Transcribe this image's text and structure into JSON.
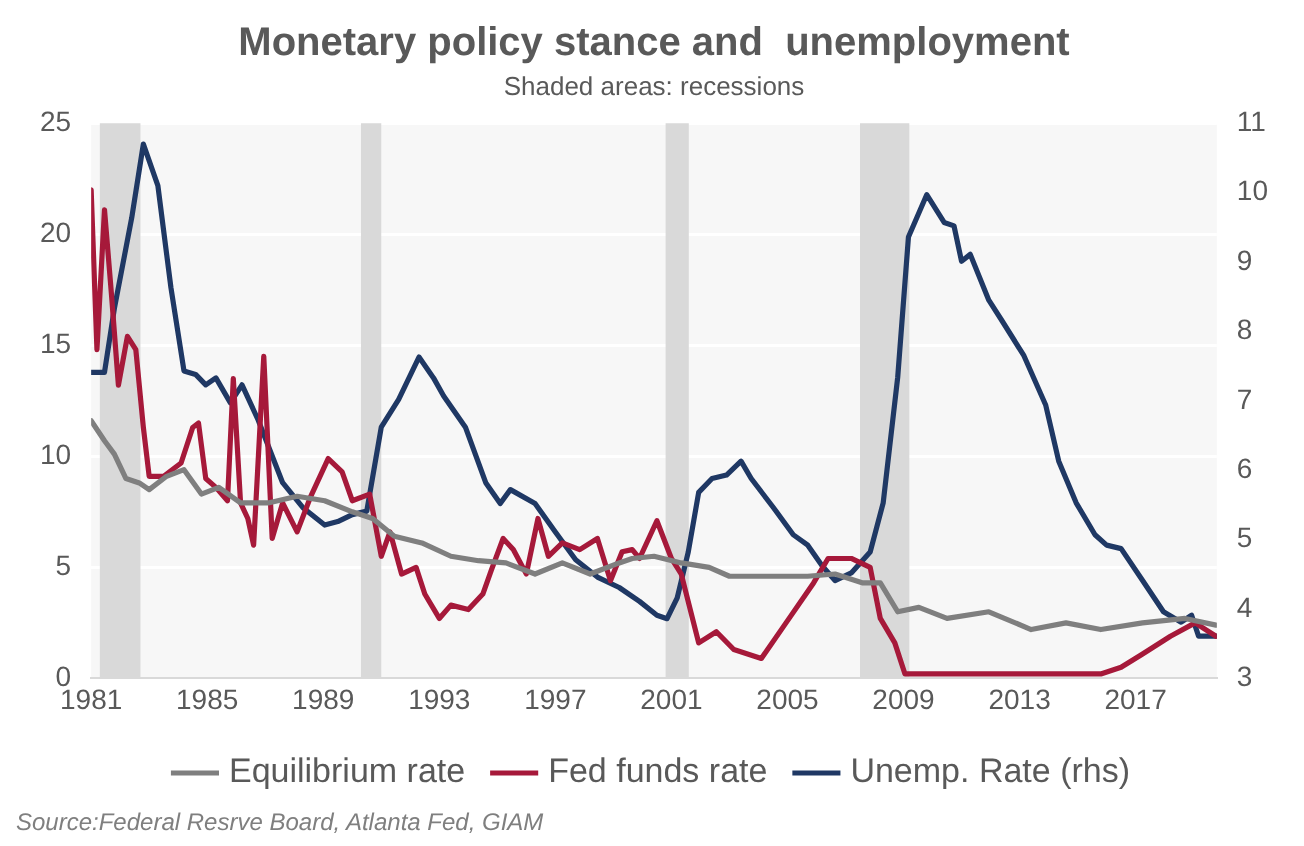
{
  "chart_data": {
    "type": "line",
    "title": "Monetary policy stance and  unemployment",
    "subtitle": "Shaded areas: recessions",
    "annotations": [
      "Source:Federal Resrve Board, Atlanta Fed, GIAM"
    ],
    "xlim": [
      1981,
      2019.8
    ],
    "xticks": [
      1981,
      1985,
      1989,
      1993,
      1997,
      2001,
      2005,
      2009,
      2013,
      2017
    ],
    "ylim": [
      0,
      25
    ],
    "yticks": [
      0,
      5,
      10,
      15,
      20,
      25
    ],
    "y2lim": [
      3,
      11
    ],
    "y2ticks": [
      3,
      4,
      5,
      6,
      7,
      8,
      9,
      10,
      11
    ],
    "grid": "y",
    "legend": "bottom",
    "marker": "none",
    "line_style": "solid",
    "bands": [
      {
        "axis": "x",
        "from": 1981.3,
        "to": 1982.7,
        "color": "#d9d9d9"
      },
      {
        "axis": "x",
        "from": 1990.3,
        "to": 1991.0,
        "color": "#d9d9d9"
      },
      {
        "axis": "x",
        "from": 2000.8,
        "to": 2001.6,
        "color": "#d9d9d9"
      },
      {
        "axis": "x",
        "from": 2007.5,
        "to": 2009.2,
        "color": "#d9d9d9"
      }
    ],
    "series": [
      {
        "name": "Equilibrium rate",
        "color": "#7f7f7f",
        "x": [
          1981.0,
          1981.46,
          1981.8,
          1982.2,
          1982.66,
          1983.0,
          1983.6,
          1984.2,
          1984.8,
          1985.4,
          1986.15,
          1987.1,
          1988.1,
          1989.05,
          1990.0,
          1990.7,
          1991.45,
          1992.4,
          1993.4,
          1994.35,
          1995.3,
          1996.3,
          1997.24,
          1998.2,
          1999.2,
          1999.65,
          2000.4,
          2001.34,
          2002.3,
          2003.0,
          2004.2,
          2005.7,
          2006.64,
          2007.6,
          2008.2,
          2008.8,
          2009.53,
          2010.5,
          2011.94,
          2013.4,
          2014.6,
          2015.8,
          2017.24,
          2018.7,
          2019.77
        ],
        "values": [
          11.6,
          10.7,
          10.1,
          9.0,
          8.8,
          8.5,
          9.1,
          9.4,
          8.3,
          8.6,
          7.9,
          7.9,
          8.2,
          8.0,
          7.5,
          7.2,
          6.4,
          6.1,
          5.5,
          5.3,
          5.2,
          4.7,
          5.2,
          4.7,
          5.2,
          5.4,
          5.5,
          5.2,
          5.0,
          4.6,
          4.6,
          4.6,
          4.7,
          4.3,
          4.3,
          3.0,
          3.2,
          2.7,
          3.0,
          2.2,
          2.5,
          2.2,
          2.5,
          2.7,
          2.4
        ]
      },
      {
        "name": "Fed funds rate",
        "color": "#a6193a",
        "x": [
          1981.0,
          1981.2,
          1981.46,
          1981.7,
          1981.94,
          1982.25,
          1982.54,
          1982.8,
          1983.0,
          1983.5,
          1984.1,
          1984.5,
          1984.7,
          1984.95,
          1985.3,
          1985.7,
          1985.9,
          1986.15,
          1986.4,
          1986.6,
          1986.95,
          1987.24,
          1987.6,
          1988.1,
          1988.57,
          1989.17,
          1989.65,
          1990.0,
          1990.6,
          1991.0,
          1991.3,
          1991.7,
          1992.2,
          1992.5,
          1993.0,
          1993.4,
          1994.0,
          1994.5,
          1994.8,
          1995.2,
          1995.55,
          1996.0,
          1996.4,
          1996.76,
          1997.24,
          1997.84,
          1998.45,
          1998.9,
          1999.3,
          1999.65,
          1999.9,
          2000.5,
          2001.0,
          2001.34,
          2001.94,
          2002.55,
          2003.15,
          2004.1,
          2004.95,
          2005.9,
          2006.4,
          2007.2,
          2007.85,
          2008.2,
          2008.7,
          2009.05,
          2011.0,
          2015.8,
          2016.5,
          2017.24,
          2018.2,
          2019.05,
          2019.77
        ],
        "values": [
          22.0,
          14.8,
          21.1,
          17.3,
          13.2,
          15.4,
          14.8,
          11.3,
          9.1,
          9.1,
          9.7,
          11.3,
          11.5,
          9.0,
          8.6,
          8.0,
          13.5,
          7.9,
          7.2,
          6.0,
          14.5,
          6.3,
          7.9,
          6.6,
          8.2,
          9.9,
          9.3,
          8.0,
          8.3,
          5.5,
          6.6,
          4.7,
          5.0,
          3.8,
          2.7,
          3.3,
          3.1,
          3.8,
          4.9,
          6.3,
          5.8,
          4.7,
          7.2,
          5.5,
          6.1,
          5.8,
          6.3,
          4.4,
          5.7,
          5.8,
          5.4,
          7.1,
          5.4,
          4.7,
          1.6,
          2.1,
          1.3,
          0.9,
          2.5,
          4.3,
          5.4,
          5.4,
          5.0,
          2.7,
          1.6,
          0.2,
          0.2,
          0.2,
          0.5,
          1.1,
          1.9,
          2.5,
          1.9
        ]
      },
      {
        "name": "Unemp. Rate (rhs)",
        "color": "#1f3864",
        "axis": "y2",
        "x": [
          1981.0,
          1981.46,
          1981.8,
          1982.4,
          1982.8,
          1983.3,
          1983.75,
          1984.2,
          1984.6,
          1984.95,
          1985.3,
          1985.8,
          1986.2,
          1986.76,
          1987.6,
          1988.3,
          1989.05,
          1989.5,
          1990.0,
          1990.5,
          1991.0,
          1991.6,
          1992.3,
          1992.8,
          1993.15,
          1993.9,
          1994.6,
          1995.1,
          1995.45,
          1996.3,
          1997.0,
          1997.7,
          1998.45,
          1999.2,
          1999.9,
          2000.5,
          2000.85,
          2001.2,
          2001.58,
          2001.94,
          2002.4,
          2002.9,
          2003.4,
          2003.75,
          2004.5,
          2005.2,
          2005.7,
          2006.2,
          2006.64,
          2007.2,
          2007.85,
          2008.3,
          2008.8,
          2009.17,
          2009.8,
          2010.4,
          2010.74,
          2011.0,
          2011.3,
          2011.94,
          2012.4,
          2013.15,
          2013.9,
          2014.35,
          2014.95,
          2015.6,
          2016.0,
          2016.5,
          2017.24,
          2017.96,
          2018.57,
          2018.93,
          2019.17,
          2019.77
        ],
        "values": [
          7.41,
          7.41,
          8.33,
          9.64,
          10.7,
          10.1,
          8.63,
          7.43,
          7.38,
          7.23,
          7.33,
          6.97,
          7.23,
          6.72,
          5.82,
          5.46,
          5.21,
          5.26,
          5.36,
          5.41,
          6.62,
          7.02,
          7.63,
          7.33,
          7.07,
          6.62,
          5.82,
          5.52,
          5.72,
          5.52,
          5.11,
          4.71,
          4.46,
          4.31,
          4.11,
          3.91,
          3.86,
          4.16,
          4.82,
          5.68,
          5.88,
          5.93,
          6.13,
          5.88,
          5.47,
          5.07,
          4.92,
          4.62,
          4.41,
          4.52,
          4.82,
          5.53,
          7.34,
          9.36,
          9.97,
          9.57,
          9.52,
          9.01,
          9.11,
          8.45,
          8.15,
          7.65,
          6.94,
          6.13,
          5.53,
          5.07,
          4.92,
          4.87,
          4.41,
          3.96,
          3.81,
          3.91,
          3.61,
          3.61
        ]
      }
    ]
  }
}
